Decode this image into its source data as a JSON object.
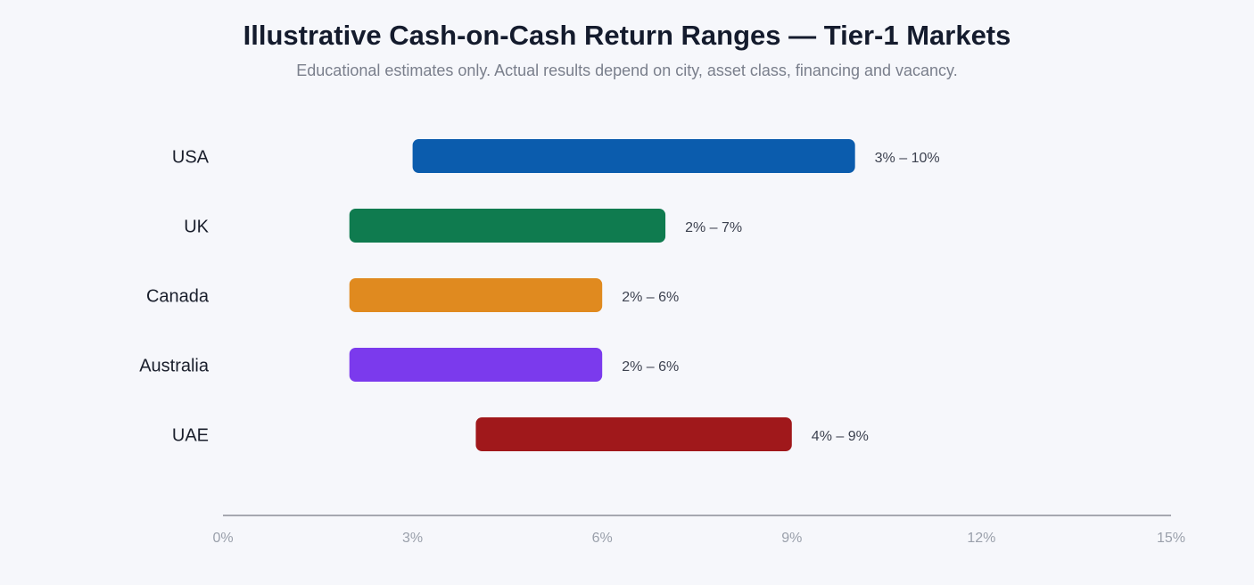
{
  "chart_data": {
    "type": "bar",
    "title": "Illustrative Cash-on-Cash Return Ranges — Tier-1 Markets",
    "subtitle": "Educational estimates only. Actual results depend on city, asset class, financing and vacancy.",
    "categories": [
      "USA",
      "UK",
      "Canada",
      "Australia",
      "UAE"
    ],
    "ranges": [
      {
        "low": 3,
        "high": 10,
        "label": "3% – 10%",
        "color": "#0b5cad"
      },
      {
        "low": 2,
        "high": 7,
        "label": "2% – 7%",
        "color": "#0f7b4f"
      },
      {
        "low": 2,
        "high": 6,
        "label": "2% – 6%",
        "color": "#e08a1f"
      },
      {
        "low": 2,
        "high": 6,
        "label": "2% – 6%",
        "color": "#7b3aed"
      },
      {
        "low": 4,
        "high": 9,
        "label": "4% – 9%",
        "color": "#a0181b"
      }
    ],
    "xlim": [
      0,
      15
    ],
    "xticks": [
      0,
      3,
      6,
      9,
      12,
      15
    ],
    "xtick_labels": [
      "0%",
      "3%",
      "6%",
      "9%",
      "12%",
      "15%"
    ],
    "grid": false
  }
}
